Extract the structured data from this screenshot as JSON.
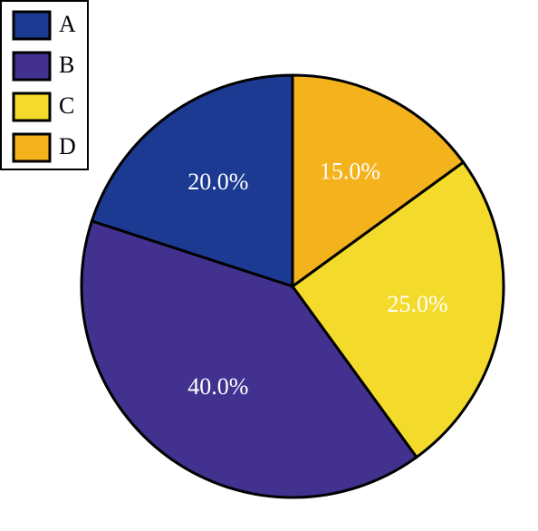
{
  "chart_data": {
    "type": "pie",
    "categories": [
      "A",
      "B",
      "C",
      "D"
    ],
    "values": [
      20,
      40,
      25,
      15
    ],
    "value_labels": [
      "20.0%",
      "40.0%",
      "25.0%",
      "15.0%"
    ],
    "colors": [
      "#1c3a92",
      "#42318e",
      "#f3da2b",
      "#f4b21c"
    ],
    "legend": "upper-left"
  }
}
